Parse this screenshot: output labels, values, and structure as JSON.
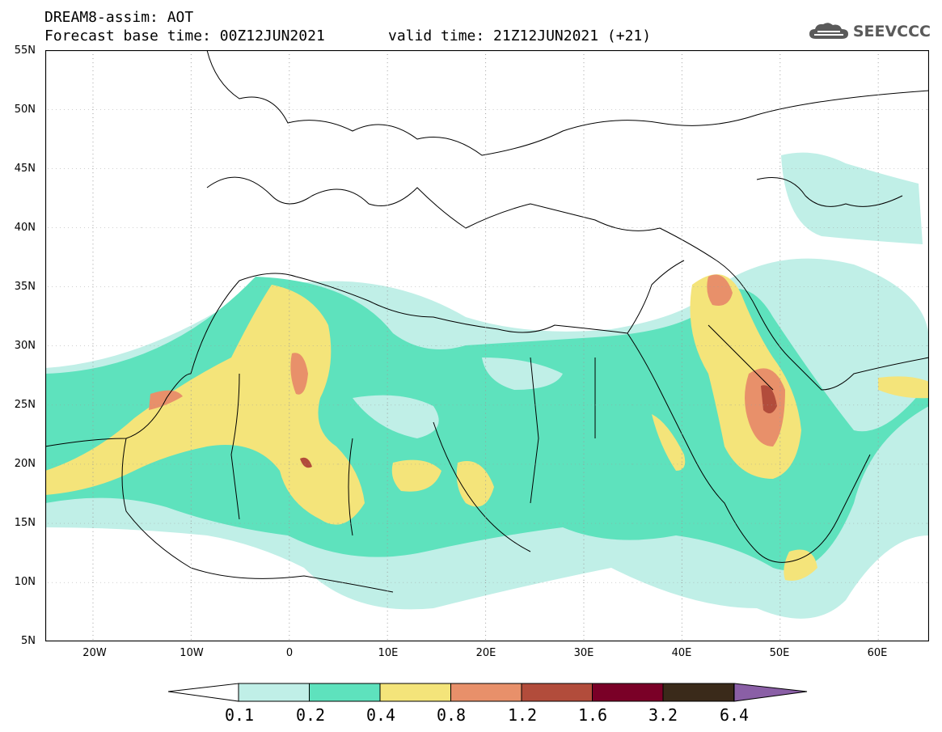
{
  "header": {
    "line1": "DREAM8-assim: AOT",
    "base_time": "Forecast base time: 00Z12JUN2021",
    "valid_time": "valid time: 21Z12JUN2021 (+21)"
  },
  "logo": {
    "text": "SEEVCCC",
    "icon": "cloud-icon"
  },
  "map": {
    "lon_range": [
      -25,
      65
    ],
    "lat_range": [
      5,
      55
    ],
    "lat_ticks": [
      "55N",
      "50N",
      "45N",
      "40N",
      "35N",
      "30N",
      "25N",
      "20N",
      "15N",
      "10N",
      "5N"
    ],
    "lon_ticks": [
      "20W",
      "10W",
      "0",
      "10E",
      "20E",
      "30E",
      "40E",
      "50E",
      "60E"
    ]
  },
  "legend": {
    "levels": [
      "0.1",
      "0.2",
      "0.4",
      "0.8",
      "1.2",
      "1.6",
      "3.2",
      "6.4"
    ],
    "colors": [
      "#c0efe7",
      "#5ee2bd",
      "#f4e47a",
      "#e8906a",
      "#b24c3b",
      "#7a0027",
      "#3a2a1a"
    ],
    "below_color": "#ffffff",
    "above_color": "#8a5fa6"
  }
}
